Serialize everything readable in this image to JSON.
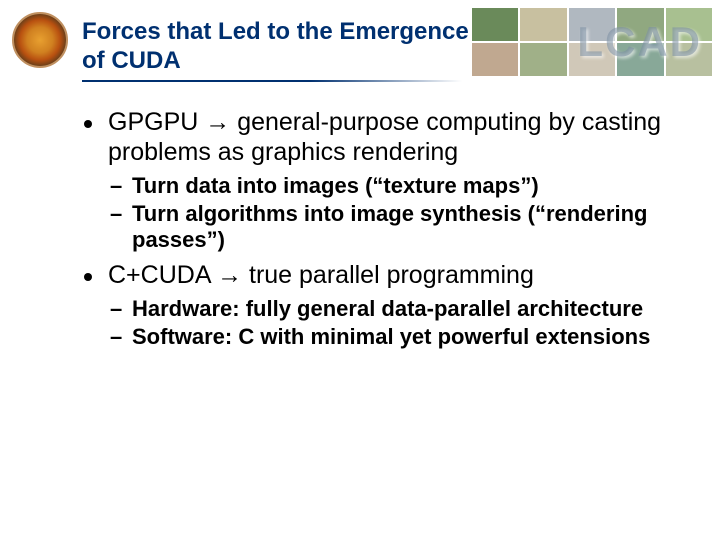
{
  "title": "Forces that Led to the Emergence of CUDA",
  "watermark": "LCAD",
  "bullets": [
    {
      "text_pre": "GPGPU ",
      "arrow": "→",
      "text_post": " general-purpose computing by casting problems as graphics rendering",
      "subs": [
        "Turn data into images (“texture maps”)",
        "Turn algorithms into image synthesis (“rendering passes”)"
      ]
    },
    {
      "text_pre": "C+CUDA ",
      "arrow": "→",
      "text_post": " true parallel programming",
      "subs": [
        "Hardware: fully general data-parallel architecture",
        "Software: C with minimal yet powerful extensions"
      ]
    }
  ],
  "colors": {
    "title": "#003070",
    "body": "#000000",
    "background": "#ffffff"
  },
  "fonts": {
    "title_size_pt": 24,
    "bullet_size_pt": 25,
    "sub_size_pt": 22,
    "family": "Arial"
  }
}
